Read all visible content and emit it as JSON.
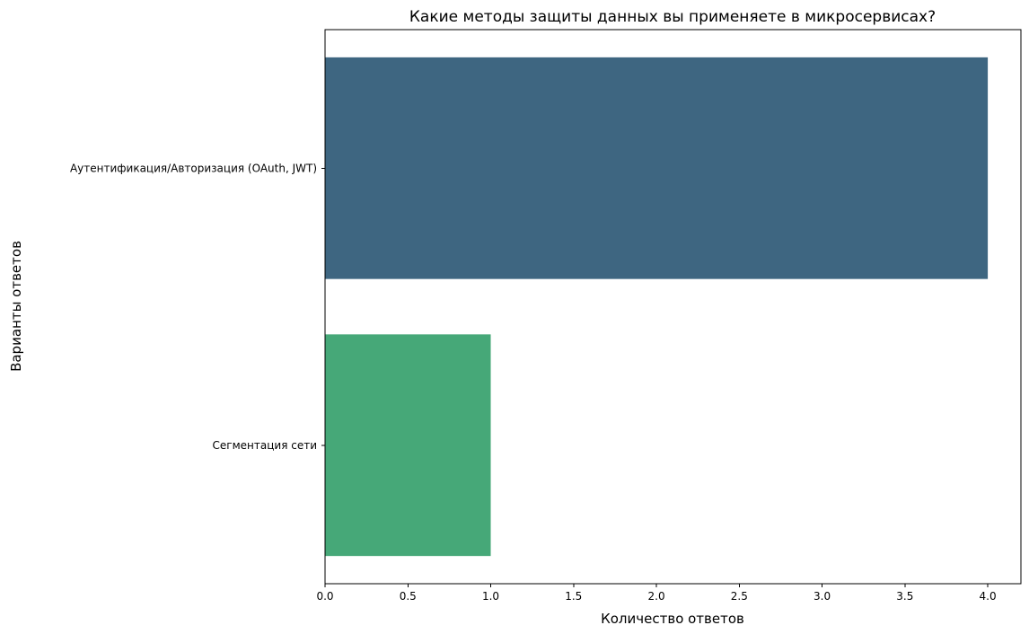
{
  "chart_data": {
    "type": "bar",
    "orientation": "horizontal",
    "title": "Какие методы защиты данных вы применяете в микросервисах?",
    "xlabel": "Количество ответов",
    "ylabel": "Варианты ответов",
    "categories": [
      "Аутентификация/Авторизация (OAuth, JWT)",
      "Сегментация сети"
    ],
    "values": [
      4,
      1
    ],
    "colors": [
      "#3e6681",
      "#46a878"
    ],
    "xlim": [
      0,
      4.2
    ],
    "xticks": [
      0,
      0.5,
      1,
      1.5,
      2,
      2.5,
      3,
      3.5,
      4
    ],
    "xtick_labels": [
      "0.0",
      "0.5",
      "1.0",
      "1.5",
      "2.0",
      "2.5",
      "3.0",
      "3.5",
      "4.0"
    ],
    "grid": false,
    "legend": "none"
  }
}
